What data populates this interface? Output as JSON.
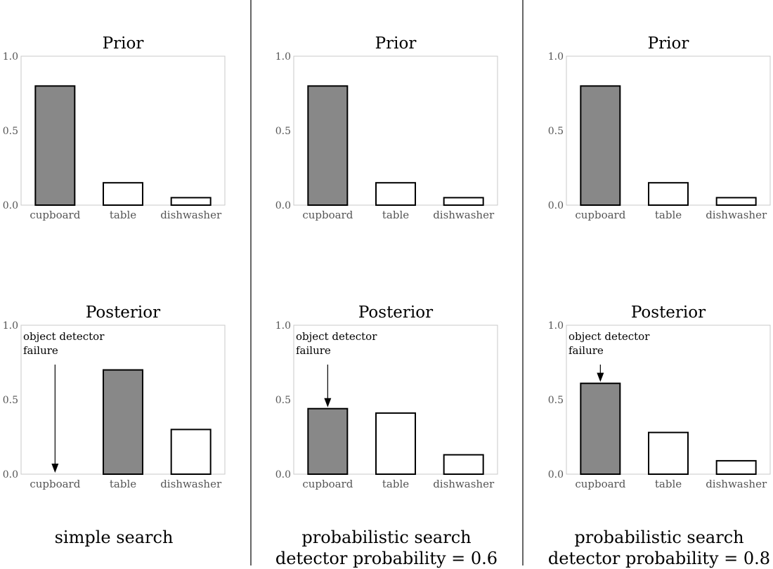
{
  "columns": [
    {
      "caption": [
        "simple search",
        ""
      ],
      "charts": [
        {
          "type": "bar",
          "title": "Prior",
          "categories": [
            "cupboard",
            "table",
            "dishwasher"
          ],
          "values": [
            0.8,
            0.15,
            0.05
          ],
          "highlight": 0,
          "ylim": [
            0,
            1
          ],
          "yticks": [
            "0.0",
            "0.5",
            "1.0"
          ],
          "annotation": ""
        },
        {
          "type": "bar",
          "title": "Posterior",
          "categories": [
            "cupboard",
            "table",
            "dishwasher"
          ],
          "values": [
            0.0,
            0.7,
            0.3
          ],
          "highlight": 1,
          "ylim": [
            0,
            1
          ],
          "yticks": [
            "0.0",
            "0.5",
            "1.0"
          ],
          "annotation": [
            "object detector",
            "failure"
          ]
        }
      ]
    },
    {
      "caption": [
        "probabilistic search",
        "detector probability = 0.6"
      ],
      "charts": [
        {
          "type": "bar",
          "title": "Prior",
          "categories": [
            "cupboard",
            "table",
            "dishwasher"
          ],
          "values": [
            0.8,
            0.15,
            0.05
          ],
          "highlight": 0,
          "ylim": [
            0,
            1
          ],
          "yticks": [
            "0.0",
            "0.5",
            "1.0"
          ],
          "annotation": ""
        },
        {
          "type": "bar",
          "title": "Posterior",
          "categories": [
            "cupboard",
            "table",
            "dishwasher"
          ],
          "values": [
            0.44,
            0.41,
            0.13
          ],
          "highlight": 0,
          "ylim": [
            0,
            1
          ],
          "yticks": [
            "0.0",
            "0.5",
            "1.0"
          ],
          "annotation": [
            "object detector",
            "failure"
          ]
        }
      ]
    },
    {
      "caption": [
        "probabilistic search",
        "detector probability = 0.8"
      ],
      "charts": [
        {
          "type": "bar",
          "title": "Prior",
          "categories": [
            "cupboard",
            "table",
            "dishwasher"
          ],
          "values": [
            0.8,
            0.15,
            0.05
          ],
          "highlight": 0,
          "ylim": [
            0,
            1
          ],
          "yticks": [
            "0.0",
            "0.5",
            "1.0"
          ],
          "annotation": ""
        },
        {
          "type": "bar",
          "title": "Posterior",
          "categories": [
            "cupboard",
            "table",
            "dishwasher"
          ],
          "values": [
            0.61,
            0.28,
            0.09
          ],
          "highlight": 0,
          "ylim": [
            0,
            1
          ],
          "yticks": [
            "0.0",
            "0.5",
            "1.0"
          ],
          "annotation": [
            "object detector",
            "failure"
          ]
        }
      ]
    }
  ],
  "colors": {
    "highlight": "#888888",
    "bar": "#ffffff",
    "edge": "#000000",
    "frame": "#c8c8c8",
    "tick": "#555555"
  }
}
